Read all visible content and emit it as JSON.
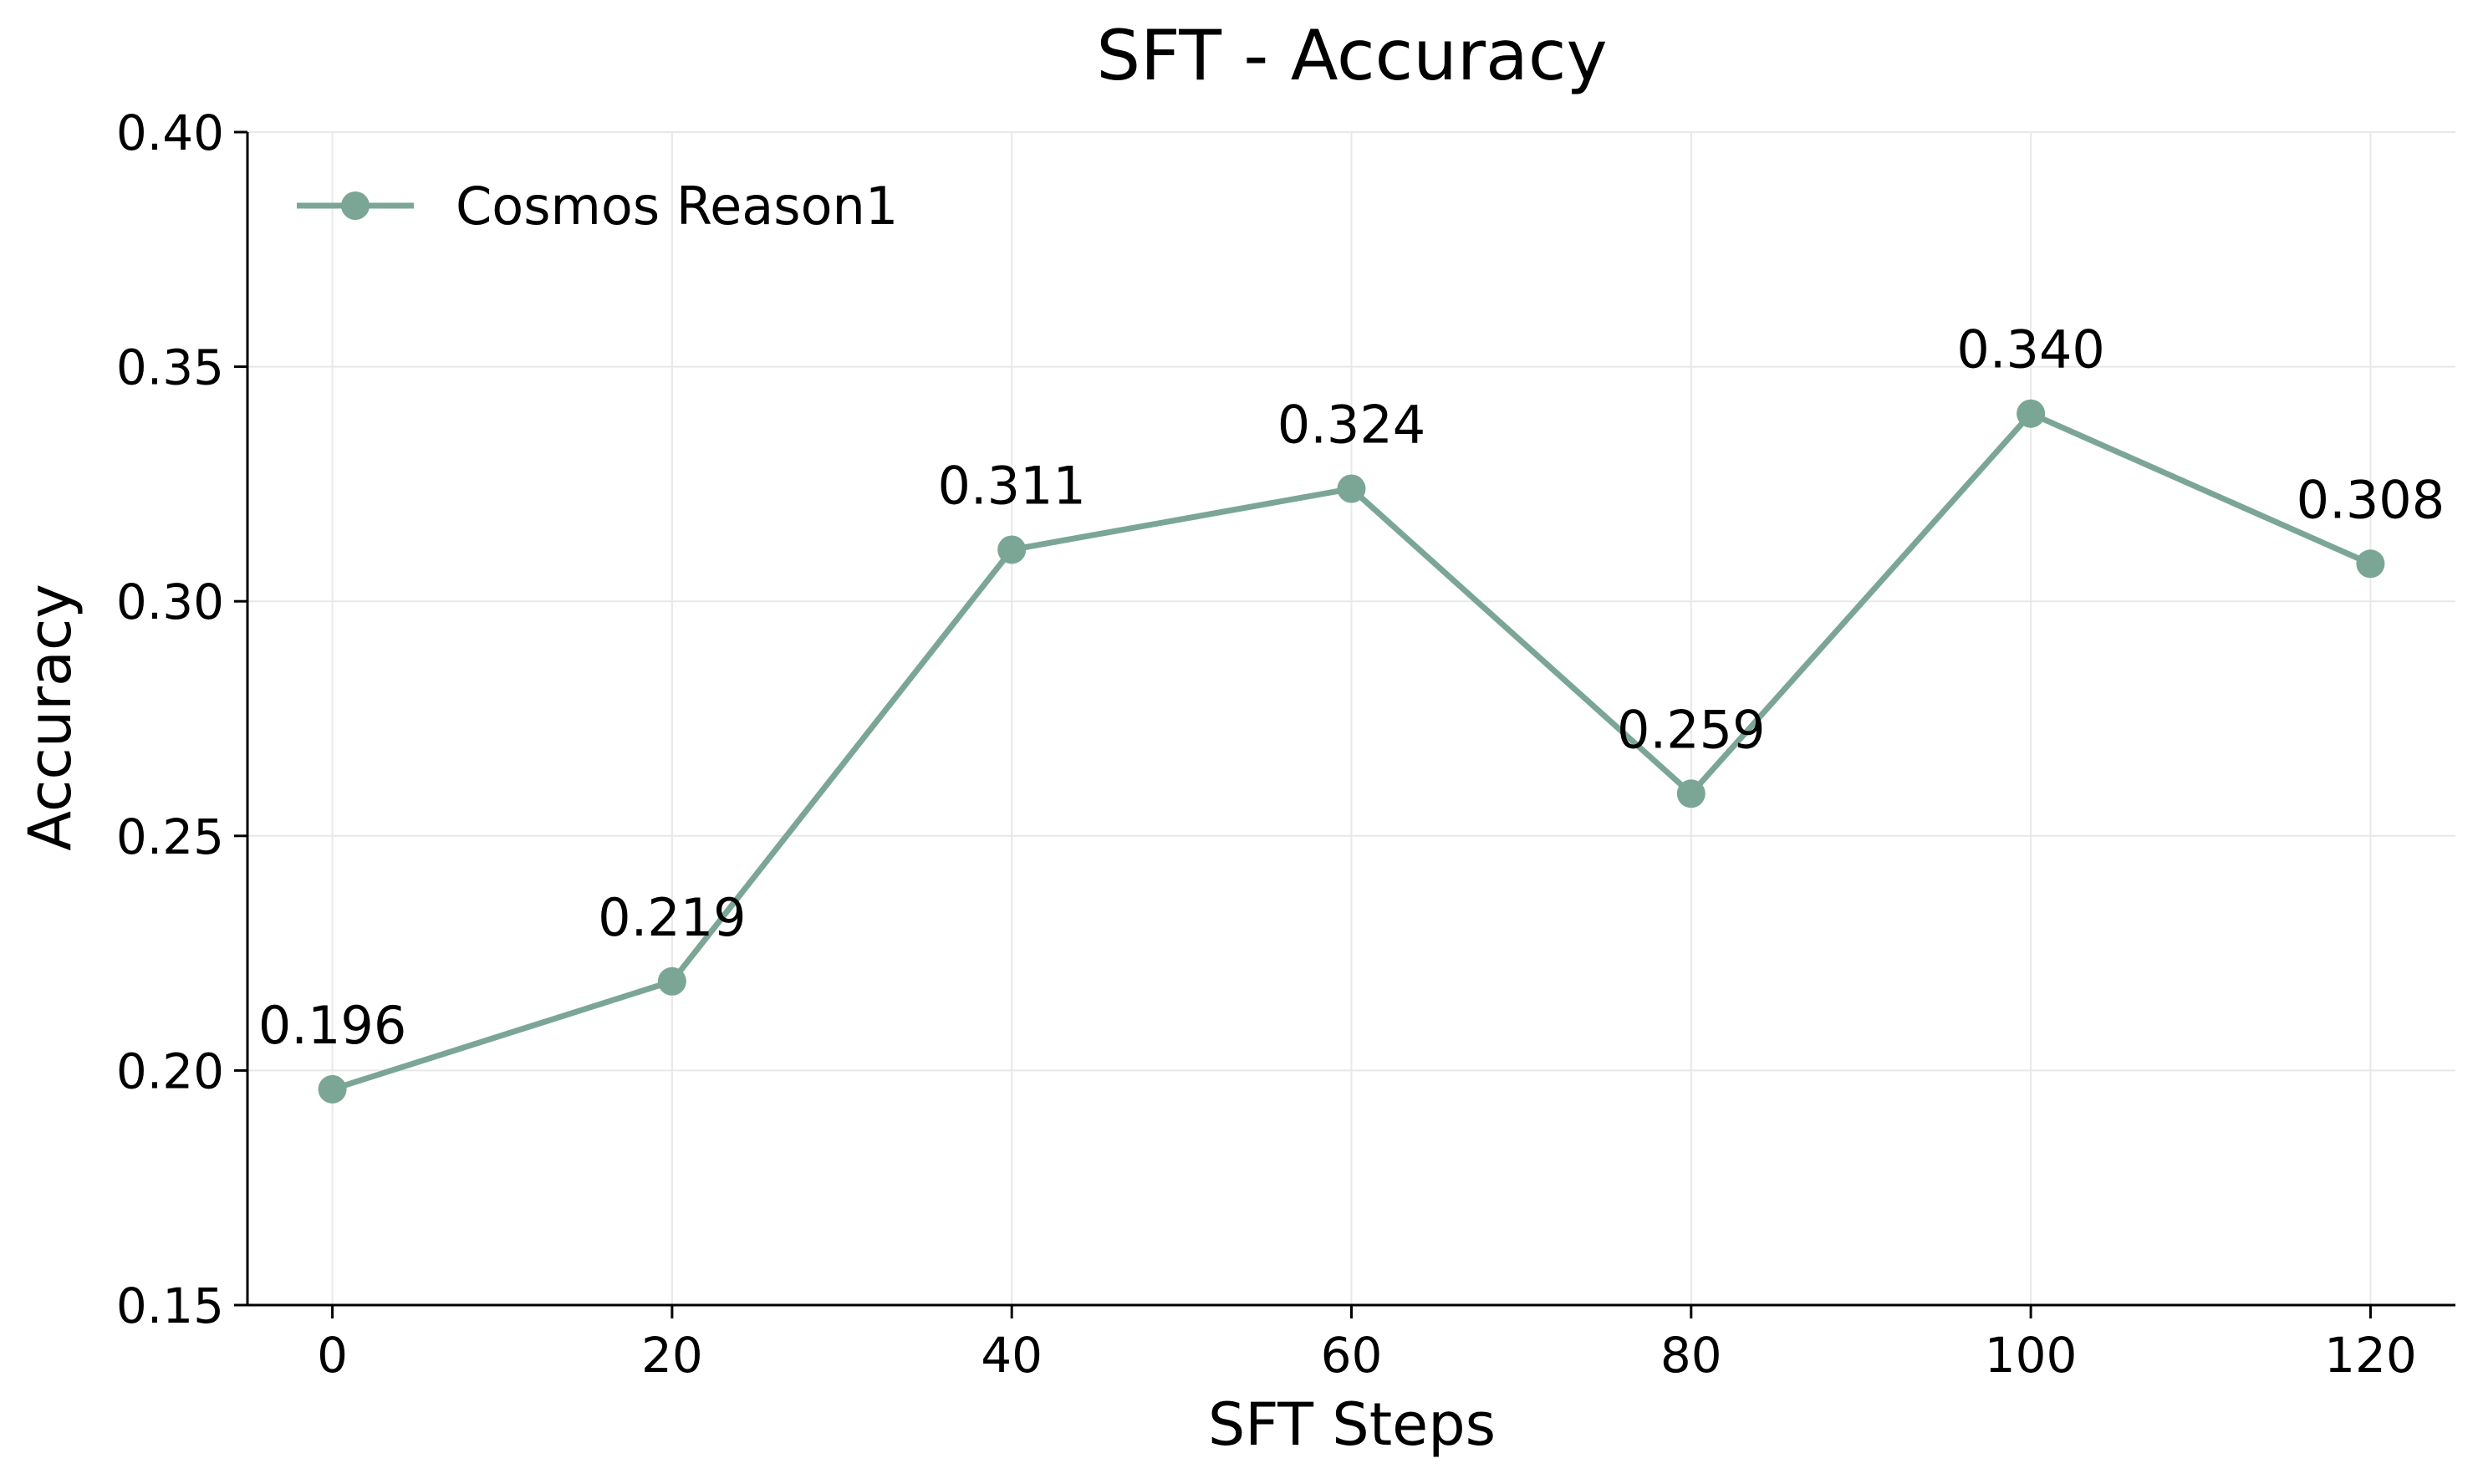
{
  "chart_data": {
    "type": "line",
    "title": "SFT - Accuracy",
    "xlabel": "SFT Steps",
    "ylabel": "Accuracy",
    "x": [
      0,
      20,
      40,
      60,
      80,
      100,
      120
    ],
    "series": [
      {
        "name": "Cosmos Reason1",
        "values": [
          0.196,
          0.219,
          0.311,
          0.324,
          0.259,
          0.34,
          0.308
        ],
        "labels": [
          "0.196",
          "0.219",
          "0.311",
          "0.324",
          "0.259",
          "0.340",
          "0.308"
        ],
        "color": "#7BA696",
        "marker": "circle"
      }
    ],
    "xlim": [
      -5,
      125
    ],
    "ylim": [
      0.15,
      0.4
    ],
    "xticks": [
      0,
      20,
      40,
      60,
      80,
      100,
      120
    ],
    "xtick_labels": [
      "0",
      "20",
      "40",
      "60",
      "80",
      "100",
      "120"
    ],
    "yticks": [
      0.15,
      0.2,
      0.25,
      0.3,
      0.35,
      0.4
    ],
    "ytick_labels": [
      "0.15",
      "0.20",
      "0.25",
      "0.30",
      "0.35",
      "0.40"
    ],
    "grid": true,
    "grid_color": "#E8E8E8",
    "legend_position": "top-left",
    "spines": [
      "left",
      "bottom"
    ]
  }
}
